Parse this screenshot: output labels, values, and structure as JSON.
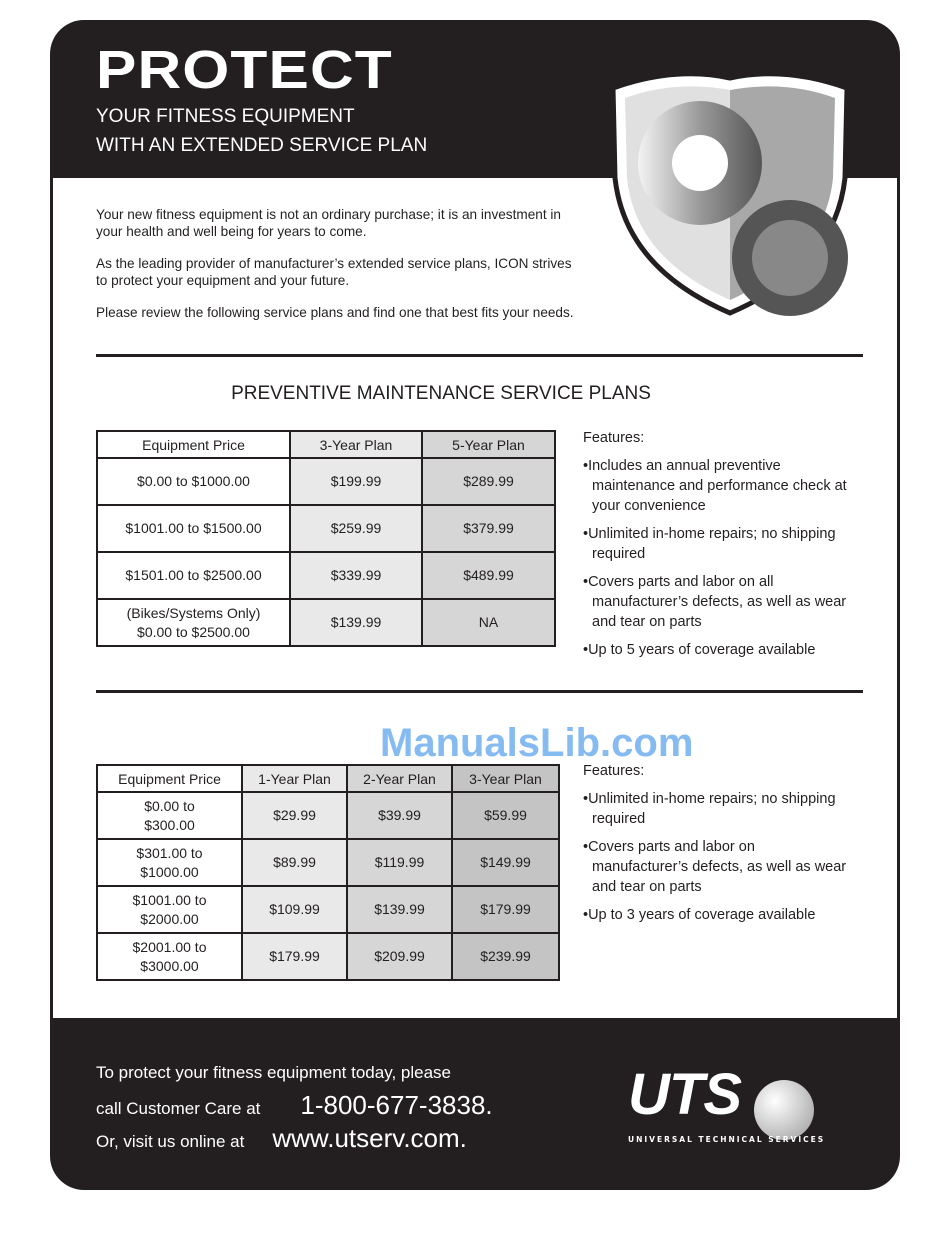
{
  "header": {
    "title": "PROTECT",
    "subtitle_lines": [
      "YOUR FITNESS EQUIPMENT",
      "WITH AN EXTENDED SERVICE PLAN"
    ],
    "graphic_icon": "shield-gears-icon"
  },
  "intro": [
    "Your new fitness equipment is not an ordinary purchase; it is an investment in your health and well being for years to come.",
    "As the leading provider of manufacturer’s extended service plans, ICON strives to protect your equipment and your future.",
    "Please review the following service plans and find one that best fits your needs."
  ],
  "section1": {
    "title": "PREVENTIVE MAINTENANCE SERVICE PLANS",
    "headers": [
      "Equipment Price",
      "3-Year Plan",
      "5-Year Plan"
    ],
    "rows": [
      [
        "$0.00 to $1000.00",
        "$199.99",
        "$289.99"
      ],
      [
        "$1001.00 to $1500.00",
        "$259.99",
        "$379.99"
      ],
      [
        "$1501.00 to $2500.00",
        "$339.99",
        "$489.99"
      ],
      [
        "(Bikes/Systems Only)\n$0.00 to $2500.00",
        "$139.99",
        "NA"
      ]
    ],
    "features_label": "Features:",
    "features": [
      "Includes an annual preventive maintenance and performance check at your convenience",
      "Unlimited in-home repairs; no shipping required",
      "Covers parts and labor on all manufacturer’s defects, as well as wear and tear on parts",
      "Up to 5 years of coverage available"
    ]
  },
  "section2": {
    "headers": [
      "Equipment Price",
      "1-Year Plan",
      "2-Year Plan",
      "3-Year Plan"
    ],
    "rows": [
      [
        "$0.00 to\n$300.00",
        "$29.99",
        "$39.99",
        "$59.99"
      ],
      [
        "$301.00 to\n$1000.00",
        "$89.99",
        "$119.99",
        "$149.99"
      ],
      [
        "$1001.00 to\n$2000.00",
        "$109.99",
        "$139.99",
        "$179.99"
      ],
      [
        "$2001.00 to\n$3000.00",
        "$179.99",
        "$209.99",
        "$239.99"
      ]
    ],
    "features_label": "Features:",
    "features": [
      "Unlimited in-home repairs; no shipping required",
      "Covers parts and labor on manufacturer’s defects, as well as wear and tear on parts",
      "Up to 3 years of coverage available"
    ]
  },
  "footer": {
    "line1": "To protect your fitness equipment today, please",
    "line2": "call Customer Care at",
    "phone": "1-800-677-3838.",
    "line3": "Or, visit us online at",
    "url": "www.utserv.com."
  },
  "logo": {
    "text": "UTS",
    "tagline": "UNIVERSAL TECHNICAL SERVICES"
  },
  "watermark": "ManualsLib.com"
}
